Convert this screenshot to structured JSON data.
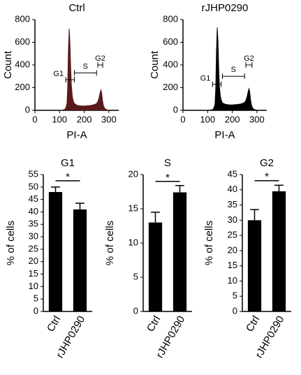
{
  "chart_data": [
    {
      "type": "area",
      "title": "Ctrl",
      "x_label": "PI-A",
      "y_label": "Count",
      "color": "#5a1a1a",
      "x": [
        100,
        110,
        120,
        125,
        130,
        133,
        136,
        139,
        142,
        145,
        148,
        152,
        156,
        160,
        170,
        180,
        190,
        200,
        210,
        220,
        230,
        240,
        250,
        255,
        260,
        265,
        268,
        271,
        274,
        278,
        284,
        292,
        300
      ],
      "values": [
        0,
        2,
        8,
        20,
        60,
        200,
        550,
        720,
        600,
        380,
        220,
        120,
        80,
        60,
        45,
        40,
        38,
        38,
        40,
        42,
        45,
        50,
        60,
        75,
        110,
        160,
        180,
        150,
        90,
        40,
        15,
        5,
        0
      ],
      "xlim": [
        0,
        340
      ],
      "xticks": [
        0,
        100,
        200,
        300
      ],
      "ylim": [
        0,
        800
      ],
      "yticks": [
        0,
        200,
        400,
        600,
        800
      ],
      "gates": [
        {
          "name": "G1",
          "range": [
            125,
            160
          ],
          "level": 270
        },
        {
          "name": "S",
          "range": [
            160,
            250
          ],
          "level": 330
        },
        {
          "name": "G2",
          "range": [
            255,
            275
          ],
          "level": 400
        }
      ]
    },
    {
      "type": "area",
      "title": "rJHP0290",
      "x_label": "PI-A",
      "y_label": "Count",
      "color": "#000000",
      "x": [
        100,
        110,
        120,
        125,
        130,
        133,
        136,
        139,
        142,
        145,
        148,
        152,
        156,
        160,
        170,
        180,
        190,
        200,
        210,
        220,
        230,
        240,
        250,
        255,
        260,
        265,
        268,
        271,
        274,
        278,
        284,
        292,
        300
      ],
      "values": [
        0,
        2,
        6,
        18,
        55,
        190,
        530,
        730,
        610,
        370,
        210,
        120,
        85,
        65,
        55,
        50,
        48,
        48,
        50,
        52,
        55,
        60,
        70,
        85,
        120,
        170,
        190,
        160,
        95,
        45,
        15,
        5,
        0
      ],
      "xlim": [
        0,
        340
      ],
      "xticks": [
        0,
        100,
        200,
        300
      ],
      "ylim": [
        0,
        800
      ],
      "yticks": [
        0,
        200,
        400,
        600,
        800
      ],
      "gates": [
        {
          "name": "G1",
          "range": [
            120,
            155
          ],
          "level": 230
        },
        {
          "name": "S",
          "range": [
            160,
            250
          ],
          "level": 300
        },
        {
          "name": "G2",
          "range": [
            255,
            280
          ],
          "level": 400
        }
      ]
    },
    {
      "type": "bar",
      "title": "G1",
      "y_label": "% of cells",
      "color": "#000000",
      "categories": [
        "Ctrl",
        "rJHP0290"
      ],
      "values": [
        48,
        41
      ],
      "errors": [
        2,
        2.5
      ],
      "ylim": [
        0,
        55
      ],
      "yticks": [
        0,
        5,
        10,
        15,
        20,
        25,
        30,
        35,
        40,
        45,
        50,
        55
      ],
      "significance": {
        "label": "*",
        "level": 52.5
      }
    },
    {
      "type": "bar",
      "title": "S",
      "y_label": "% of cells",
      "color": "#000000",
      "categories": [
        "Ctrl",
        "rJHP0290"
      ],
      "values": [
        13,
        17.4
      ],
      "errors": [
        1.5,
        1
      ],
      "ylim": [
        0,
        20
      ],
      "yticks": [
        0,
        5,
        10,
        15,
        20
      ],
      "significance": {
        "label": "*",
        "level": 19
      }
    },
    {
      "type": "bar",
      "title": "G2",
      "y_label": "% of cells",
      "color": "#000000",
      "categories": [
        "Ctrl",
        "rJHP0290"
      ],
      "values": [
        30,
        39.5
      ],
      "errors": [
        3.5,
        2
      ],
      "ylim": [
        0,
        45
      ],
      "yticks": [
        0,
        5,
        10,
        15,
        20,
        25,
        30,
        35,
        40,
        45
      ],
      "significance": {
        "label": "*",
        "level": 43
      }
    }
  ]
}
